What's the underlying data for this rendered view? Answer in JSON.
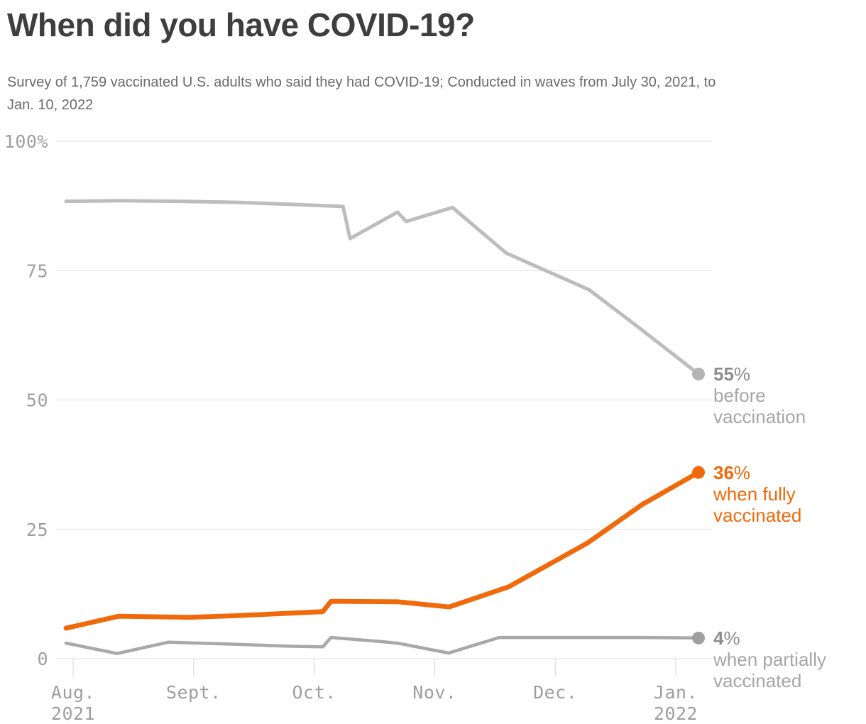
{
  "header": {
    "title": "When did you have COVID-19?",
    "subtitle": "Survey of 1,759 vaccinated U.S. adults who said they had COVID-19; Conducted in waves from July 30, 2021, to Jan. 10, 2022",
    "subtitle_lines": [
      "Survey of 1,759 vaccinated U.S. adults who said they had COVID-19; Conducted in waves from July 30, 2021, to",
      "Jan. 10, 2022"
    ]
  },
  "chart_data": {
    "type": "line",
    "title": "When did you have COVID-19?",
    "subtitle": "Survey of 1,759 vaccinated U.S. adults who said they had COVID-19; Conducted in waves from July 30, 2021, to Jan. 10, 2022",
    "x_label": "",
    "y_label": "",
    "grid": true,
    "legend_position": "right-end-labels",
    "x_range_note": "time from July 30, 2021 (x=0) to Jan. 10, 2022 (x=1)",
    "x_axis": {
      "ticks": [
        {
          "label": "Aug.",
          "sublabel": "2021"
        },
        {
          "label": "Sept.",
          "sublabel": ""
        },
        {
          "label": "Oct.",
          "sublabel": ""
        },
        {
          "label": "Nov.",
          "sublabel": ""
        },
        {
          "label": "Dec.",
          "sublabel": ""
        },
        {
          "label": "Jan.",
          "sublabel": "2022"
        }
      ]
    },
    "y_axis": {
      "min": 0,
      "max": 100,
      "unit": "%",
      "ticks": [
        {
          "value": 100,
          "label": "100%"
        },
        {
          "value": 75,
          "label": "75"
        },
        {
          "value": 50,
          "label": "50"
        },
        {
          "value": 25,
          "label": "25"
        },
        {
          "value": 0,
          "label": "0"
        }
      ],
      "gridline_color": "#e8e8e8",
      "tick_mark_color": "#e2e2e2"
    },
    "series": [
      {
        "name": "before vaccination",
        "color": "#bdbdbd",
        "dot_color": "#b3b3b3",
        "end_value": 55,
        "points": [
          [
            0.0,
            88.4
          ],
          [
            0.086,
            88.5
          ],
          [
            0.176,
            88.4
          ],
          [
            0.266,
            88.2
          ],
          [
            0.356,
            87.8
          ],
          [
            0.438,
            87.4
          ],
          [
            0.449,
            81.2
          ],
          [
            0.524,
            86.3
          ],
          [
            0.538,
            84.5
          ],
          [
            0.611,
            87.2
          ],
          [
            0.696,
            78.4
          ],
          [
            0.827,
            71.3
          ],
          [
            0.911,
            63.5
          ],
          [
            1.0,
            55.0
          ]
        ],
        "end_label": {
          "value": "55",
          "unit": "%",
          "line1": "before",
          "line2": "vaccination",
          "value_color": "#8d8d8d",
          "text_color": "#a6a6a6"
        }
      },
      {
        "name": "when fully vaccinated",
        "color": "#f0690a",
        "dot_color": "#f0690a",
        "end_value": 36,
        "points": [
          [
            0.0,
            5.9
          ],
          [
            0.083,
            8.2
          ],
          [
            0.195,
            8.0
          ],
          [
            0.266,
            8.3
          ],
          [
            0.356,
            8.8
          ],
          [
            0.406,
            9.1
          ],
          [
            0.419,
            11.1
          ],
          [
            0.524,
            11.0
          ],
          [
            0.606,
            10.0
          ],
          [
            0.7,
            13.9
          ],
          [
            0.825,
            22.4
          ],
          [
            0.911,
            29.8
          ],
          [
            1.0,
            36.0
          ]
        ],
        "end_label": {
          "value": "36",
          "unit": "%",
          "line1": "when fully",
          "line2": "vaccinated",
          "value_color": "#f0690a",
          "text_color": "#f0690a"
        }
      },
      {
        "name": "when partially vaccinated",
        "color": "#a8a8a8",
        "dot_color": "#9f9f9f",
        "end_value": 4,
        "points": [
          [
            0.0,
            3.0
          ],
          [
            0.081,
            1.0
          ],
          [
            0.162,
            3.2
          ],
          [
            0.266,
            2.8
          ],
          [
            0.356,
            2.4
          ],
          [
            0.406,
            2.3
          ],
          [
            0.419,
            4.1
          ],
          [
            0.498,
            3.3
          ],
          [
            0.524,
            3.0
          ],
          [
            0.605,
            1.1
          ],
          [
            0.685,
            4.1
          ],
          [
            0.911,
            4.1
          ],
          [
            1.0,
            4.0
          ]
        ],
        "end_label": {
          "value": "4",
          "unit": "%",
          "line1": "when partially",
          "line2": "vaccinated",
          "value_color": "#8d8d8d",
          "text_color": "#a6a6a6"
        }
      }
    ]
  }
}
